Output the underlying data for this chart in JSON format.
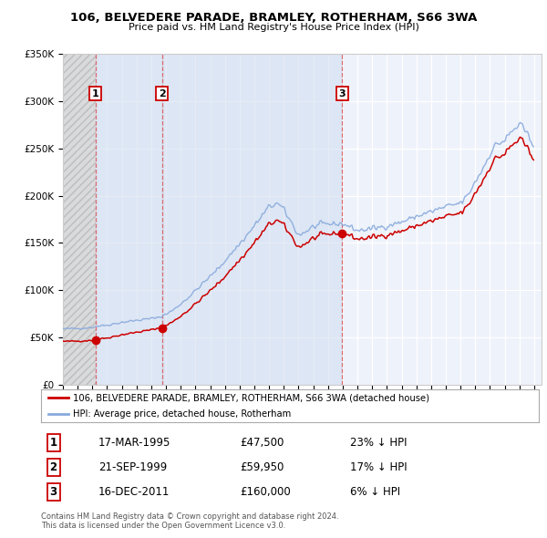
{
  "title": "106, BELVEDERE PARADE, BRAMLEY, ROTHERHAM, S66 3WA",
  "subtitle": "Price paid vs. HM Land Registry's House Price Index (HPI)",
  "legend_line1": "106, BELVEDERE PARADE, BRAMLEY, ROTHERHAM, S66 3WA (detached house)",
  "legend_line2": "HPI: Average price, detached house, Rotherham",
  "footer1": "Contains HM Land Registry data © Crown copyright and database right 2024.",
  "footer2": "This data is licensed under the Open Government Licence v3.0.",
  "sale_dates_num": [
    1995.21,
    1999.72,
    2011.96
  ],
  "sale_prices": [
    47500,
    59950,
    160000
  ],
  "sale_labels": [
    "1",
    "2",
    "3"
  ],
  "sale_date_strs": [
    "17-MAR-1995",
    "21-SEP-1999",
    "16-DEC-2011"
  ],
  "sale_price_strs": [
    "£47,500",
    "£59,950",
    "£160,000"
  ],
  "sale_pct_strs": [
    "23% ↓ HPI",
    "17% ↓ HPI",
    "6% ↓ HPI"
  ],
  "xmin": 1993.0,
  "xmax": 2025.5,
  "ymin": 0,
  "ymax": 350000,
  "line_color": "#cc0000",
  "hpi_color": "#88aadd",
  "bg_color": "#ffffff",
  "plot_bg": "#eef2fa"
}
